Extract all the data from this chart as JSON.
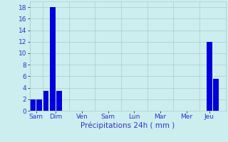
{
  "bar_values": [
    2.0,
    2.0,
    3.5,
    18.0,
    3.5,
    0,
    0,
    0,
    0,
    0,
    0,
    0,
    0,
    0,
    0,
    0,
    0,
    0,
    0,
    0,
    0,
    0,
    0,
    0,
    0,
    0,
    0,
    12.0,
    5.5,
    0
  ],
  "bar_color": "#0000dd",
  "background_color": "#cceeee",
  "grid_color": "#aacccc",
  "xlabel": "Précipitations 24h ( mm )",
  "xlabel_color": "#3333cc",
  "tick_label_color": "#3333cc",
  "ylim": [
    0,
    19
  ],
  "yticks": [
    0,
    2,
    4,
    6,
    8,
    10,
    12,
    14,
    16,
    18
  ],
  "day_labels": [
    "Sam",
    "Dim",
    "Ven",
    "Sam",
    "Lun",
    "Mar",
    "Mer",
    "Jeu"
  ],
  "day_tick_positions": [
    0.5,
    3.5,
    7.5,
    11.5,
    15.5,
    19.5,
    23.5,
    27.0
  ],
  "day_boundary_positions": [
    -0.5,
    1.5,
    5.5,
    9.5,
    13.5,
    17.5,
    21.5,
    25.5,
    29.5
  ],
  "n_bars": 30,
  "bar_width": 0.85,
  "xlabel_fontsize": 7.5,
  "tick_fontsize": 6.5,
  "ytick_fontsize": 6.5
}
